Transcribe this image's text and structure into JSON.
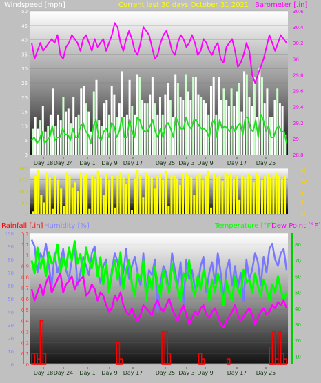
{
  "colors": {
    "background": "#c0c0c0",
    "windspeed": "#ffffff",
    "windspeed_light": "#ccffcc",
    "windspeed_avg": "#22dd22",
    "barometer": "#ff00ff",
    "direction": "#ffff00",
    "rainfall": "#ff0000",
    "humidity": "#7777ff",
    "temperature": "#00ff00",
    "dewpoint": "#ff00ff",
    "title": "#ffff00",
    "tick_right_green": "#00cc00",
    "tick_dir": "#cccc00"
  },
  "header": {
    "title": "Current last 30 days October 31 2021"
  },
  "chart_data": [
    {
      "type": "line",
      "name": "wind-barometer",
      "left_label": "Windspeed [mph]",
      "right_label": "Barometer [.in]",
      "left_ticks": [
        "0",
        "5",
        "10",
        "15",
        "20",
        "25",
        "30",
        "35",
        "40",
        "45",
        "50"
      ],
      "left_ylim": [
        0,
        50
      ],
      "right_ticks": [
        "28.8",
        "29",
        "29.2",
        "29.4",
        "29.6",
        "29.8",
        "30",
        "30.2",
        "30.4",
        "30.6"
      ],
      "right_ylim": [
        28.8,
        30.6
      ],
      "x_ticks": [
        "Day 18",
        "Day 24",
        "Day 1",
        "Day 9",
        "Day 17",
        "Day 25",
        "Day 3",
        "Day 9",
        "Day 17",
        "Day 25"
      ],
      "grid": true,
      "series": [
        {
          "name": "Windspeed",
          "values": [
            9,
            13,
            9,
            12,
            17,
            8,
            10,
            14,
            23,
            10,
            14,
            12,
            20,
            15,
            16,
            11,
            20,
            13,
            14,
            23,
            24,
            18,
            15,
            8,
            22,
            26,
            12,
            10,
            18,
            19,
            14,
            24,
            21,
            13,
            18,
            29,
            13,
            14,
            26,
            17,
            14,
            28,
            27,
            19,
            18,
            18,
            21,
            27,
            18,
            14,
            20,
            14,
            21,
            25,
            19,
            13,
            28,
            25,
            20,
            19,
            28,
            22,
            19,
            27,
            27,
            21,
            20,
            19,
            18,
            14,
            24,
            27,
            14,
            27,
            19,
            23,
            19,
            17,
            23,
            17,
            22,
            25,
            15,
            29,
            28,
            20,
            17,
            27,
            13,
            30,
            27,
            18,
            23,
            13,
            13,
            19,
            23,
            18,
            17,
            7
          ]
        },
        {
          "name": "Windspeed average",
          "values": [
            5,
            6,
            4,
            5,
            8,
            4,
            5,
            6,
            10,
            5,
            6,
            6,
            9,
            7,
            7,
            5,
            9,
            6,
            6,
            10,
            11,
            8,
            7,
            4,
            10,
            12,
            6,
            5,
            8,
            9,
            6,
            11,
            10,
            6,
            8,
            13,
            6,
            6,
            12,
            8,
            6,
            13,
            12,
            9,
            8,
            8,
            10,
            12,
            8,
            6,
            9,
            6,
            10,
            11,
            9,
            6,
            13,
            11,
            9,
            9,
            13,
            10,
            9,
            12,
            12,
            10,
            9,
            9,
            8,
            6,
            11,
            12,
            6,
            12,
            9,
            10,
            9,
            8,
            10,
            8,
            10,
            11,
            7,
            13,
            13,
            9,
            8,
            12,
            6,
            14,
            12,
            8,
            10,
            6,
            6,
            9,
            10,
            8,
            8,
            4
          ]
        },
        {
          "name": "Barometer",
          "values": [
            30.2,
            30.0,
            30.1,
            30.2,
            30.1,
            30.15,
            30.2,
            30.25,
            30.2,
            30.3,
            30.05,
            30.0,
            30.15,
            30.2,
            30.3,
            30.25,
            30.2,
            30.1,
            30.25,
            30.3,
            30.2,
            30.1,
            30.25,
            30.15,
            30.2,
            30.25,
            30.1,
            30.2,
            30.3,
            30.45,
            30.4,
            30.2,
            30.1,
            30.25,
            30.35,
            30.25,
            30.1,
            30.05,
            30.2,
            30.4,
            30.35,
            30.3,
            30.15,
            30.0,
            30.05,
            30.2,
            30.3,
            30.35,
            30.25,
            30.1,
            30.05,
            30.2,
            30.3,
            30.25,
            30.15,
            30.2,
            30.3,
            30.2,
            30.05,
            30.1,
            30.25,
            30.2,
            30.1,
            30.05,
            30.15,
            30.2,
            30.0,
            29.95,
            30.15,
            30.2,
            30.25,
            30.1,
            29.9,
            29.95,
            30.05,
            30.2,
            30.1,
            29.8,
            29.7,
            29.8,
            29.9,
            30.0,
            30.15,
            30.3,
            30.2,
            30.1,
            30.2,
            30.3,
            30.25,
            30.2
          ]
        }
      ]
    },
    {
      "type": "bar",
      "name": "wind-direction",
      "left_ticks": [
        "0",
        "90",
        "180",
        "270",
        "360"
      ],
      "ylim": [
        0,
        360
      ],
      "right_ticks": [
        "N",
        "W",
        "S",
        "E",
        "N"
      ],
      "series": [
        {
          "name": "Wind direction",
          "values": [
            20,
            300,
            350,
            150,
            90,
            330,
            290,
            40,
            310,
            270,
            200,
            60,
            330,
            300,
            210,
            250,
            180,
            330,
            310,
            320,
            40,
            300,
            280,
            340,
            290,
            150,
            320,
            270,
            300,
            50,
            310,
            330,
            290,
            240,
            320,
            30,
            280,
            350,
            300,
            130,
            330,
            310,
            290,
            200,
            300,
            320,
            270,
            340,
            60,
            310,
            300,
            280,
            230,
            320,
            330,
            300,
            290,
            150,
            310,
            320,
            270,
            300,
            340,
            50,
            320,
            290,
            310,
            260,
            330,
            300,
            320,
            280,
            300,
            110,
            310,
            290,
            320,
            300,
            250,
            330,
            310,
            270,
            300,
            320,
            290,
            310,
            330,
            300,
            280,
            310
          ]
        }
      ]
    },
    {
      "type": "line",
      "name": "rain-humidity-temperature",
      "rain_label": "Rainfall [.in]",
      "humidity_label": "Humidity [%]",
      "temperature_label": "Temperature [°F]",
      "dewpoint_label": "Dew Point [°F]",
      "rain_ticks": [
        "0",
        "0.1",
        "0.2",
        "0.3",
        "0.4",
        "0.5",
        "0.6",
        "0.7",
        "0.8",
        "0.9",
        "1",
        "1.1",
        "1.2"
      ],
      "rain_ylim": [
        0,
        1.2
      ],
      "humidity_ticks": [
        "0",
        "10",
        "20",
        "30",
        "40",
        "50",
        "60",
        "70",
        "80",
        "90",
        "100"
      ],
      "humidity_ylim": [
        0,
        100
      ],
      "temp_ticks": [
        "10",
        "20",
        "30",
        "40",
        "50",
        "60",
        "70",
        "80"
      ],
      "temp_ylim": [
        5,
        87
      ],
      "x_ticks": [
        "Day 18",
        "Day 24",
        "Day 1",
        "Day 9",
        "Day 17",
        "Day 25",
        "Day 3",
        "Day 9",
        "Day 17",
        "Day 25"
      ],
      "grid": true,
      "series": [
        {
          "name": "Rainfall",
          "values": [
            0.1,
            0.1,
            0.05,
            0.4,
            0.1,
            0,
            0,
            0,
            0,
            0,
            0,
            0,
            0,
            0,
            0,
            0,
            0,
            0,
            0,
            0,
            0,
            0,
            0,
            0,
            0,
            0,
            0,
            0,
            0,
            0,
            0.2,
            0.05,
            0,
            0,
            0,
            0,
            0,
            0,
            0,
            0,
            0,
            0,
            0,
            0,
            0,
            0,
            0.3,
            0.3,
            0.1,
            0,
            0,
            0,
            0,
            0,
            0,
            0,
            0,
            0,
            0,
            0.1,
            0.05,
            0,
            0,
            0,
            0,
            0,
            0,
            0,
            0,
            0.05,
            0,
            0,
            0,
            0,
            0,
            0,
            0,
            0,
            0,
            0,
            0,
            0,
            0,
            0,
            0.15,
            0.3,
            0.05,
            0.3,
            0.1,
            0.05
          ]
        },
        {
          "name": "Humidity",
          "values": [
            95,
            90,
            70,
            85,
            80,
            92,
            75,
            60,
            85,
            70,
            78,
            88,
            72,
            65,
            80,
            90,
            60,
            70,
            82,
            75,
            68,
            85,
            90,
            70,
            62,
            75,
            80,
            55,
            72,
            85,
            78,
            60,
            70,
            88,
            65,
            75,
            82,
            70,
            60,
            85,
            55,
            72,
            68,
            80,
            40,
            62,
            75,
            70,
            55,
            85,
            72,
            60,
            78,
            45,
            80,
            65,
            72,
            58,
            60,
            75,
            82,
            55,
            70,
            78,
            62,
            85,
            70,
            50,
            72,
            80,
            60,
            75,
            58,
            70,
            48,
            80,
            65,
            72,
            85,
            78,
            60,
            82,
            70,
            88,
            92,
            80,
            75,
            85,
            88,
            72
          ]
        },
        {
          "name": "Temperature",
          "values": [
            70,
            62,
            78,
            65,
            72,
            60,
            75,
            68,
            70,
            80,
            62,
            72,
            65,
            78,
            70,
            82,
            68,
            74,
            60,
            78,
            70,
            65,
            75,
            60,
            72,
            55,
            68,
            50,
            62,
            70,
            58,
            75,
            52,
            64,
            70,
            55,
            48,
            62,
            58,
            70,
            45,
            60,
            52,
            66,
            55,
            48,
            64,
            57,
            50,
            68,
            60,
            52,
            45,
            62,
            58,
            70,
            54,
            48,
            60,
            52,
            64,
            56,
            45,
            58,
            50,
            62,
            55,
            42,
            57,
            50,
            45,
            60,
            52,
            48,
            64,
            56,
            58,
            50,
            62,
            54,
            48,
            58,
            52,
            45,
            55,
            50,
            60,
            52,
            45,
            50
          ]
        },
        {
          "name": "Dew Point",
          "values": [
            52,
            45,
            50,
            55,
            48,
            56,
            60,
            50,
            54,
            58,
            62,
            50,
            55,
            57,
            60,
            52,
            56,
            58,
            60,
            48,
            50,
            55,
            52,
            45,
            50,
            48,
            42,
            38,
            40,
            48,
            45,
            50,
            42,
            38,
            36,
            40,
            35,
            32,
            36,
            42,
            40,
            38,
            36,
            42,
            45,
            40,
            38,
            42,
            46,
            40,
            36,
            32,
            38,
            42,
            36,
            30,
            34,
            38,
            36,
            40,
            42,
            36,
            34,
            38,
            40,
            36,
            30,
            28,
            32,
            35,
            38,
            42,
            36,
            32,
            35,
            38,
            40,
            36,
            30,
            34,
            38,
            40,
            36,
            38,
            42,
            40,
            44,
            42,
            45,
            40
          ]
        }
      ]
    }
  ]
}
